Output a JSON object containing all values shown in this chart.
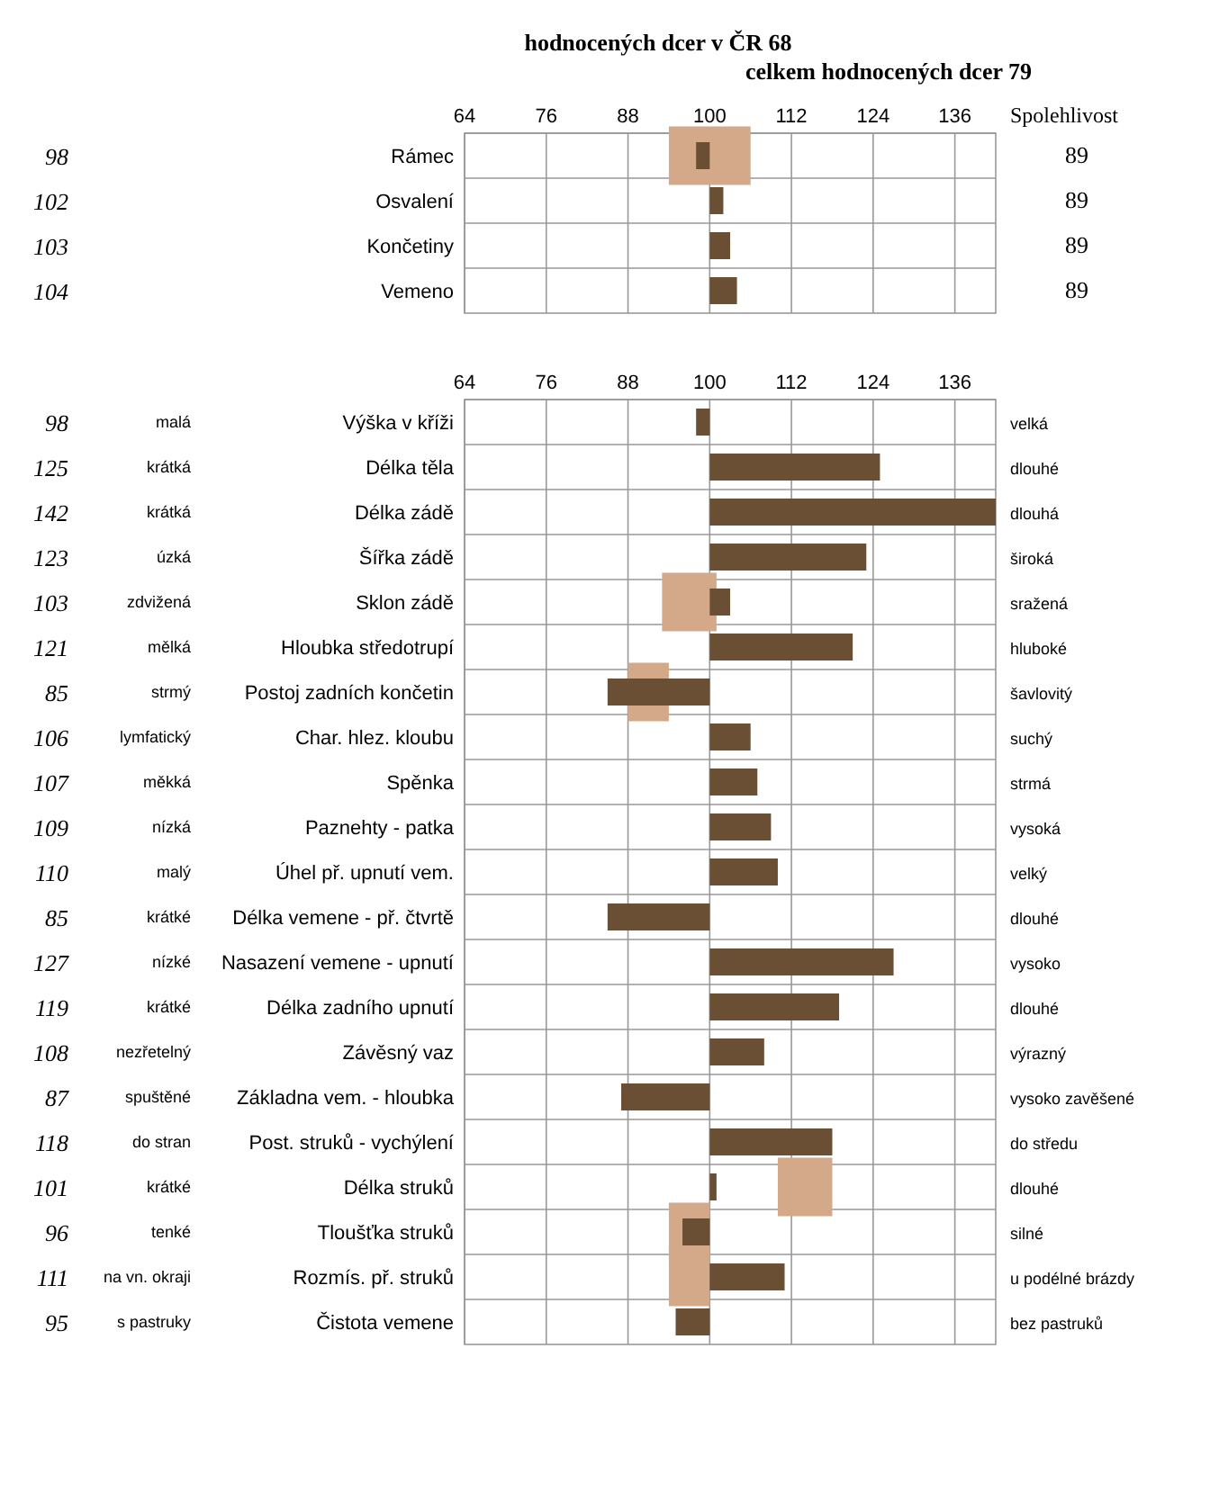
{
  "chart_data": [
    {
      "type": "bar",
      "orientation": "horizontal",
      "title": "hodnocených dcer v ČR 68",
      "subtitle": "celkem hodnocených dcer 79",
      "y2label": "Spolehlivost",
      "categories": [
        "Rámec",
        "Osvalení",
        "Končetiny",
        "Vemeno"
      ],
      "y2_categories": [
        "89",
        "89",
        "89",
        "89"
      ],
      "series": [
        {
          "type": "bar",
          "color": "#d4a98a",
          "base": [
            94,
            null,
            null,
            null
          ],
          "values": [
            12,
            null,
            null,
            null
          ]
        },
        {
          "type": "bar",
          "color": "#6b4f35",
          "base": [
            100,
            100,
            100,
            100
          ],
          "values": [
            -2,
            2,
            3,
            4
          ],
          "value_labels": [
            "98",
            "102",
            "103",
            "104"
          ]
        }
      ],
      "xlim": [
        64,
        142
      ],
      "xticks": [
        64,
        76,
        88,
        100,
        112,
        124,
        136
      ],
      "grid": true
    },
    {
      "type": "bar",
      "orientation": "horizontal",
      "categories": [
        "Výška v kříži",
        "Délka těla",
        "Délka zádě",
        "Šířka zádě",
        "Sklon zádě",
        "Hloubka středotrupí",
        "Postoj zadních končetin",
        "Char. hlez. kloubu",
        "Spěnka",
        "Paznehty - patka",
        "Úhel př. upnutí vem.",
        "Délka vemene - př. čtvrtě",
        "Nasazení vemene - upnutí",
        "Délka zadního upnutí",
        "Závěsný vaz",
        "Základna vem. - hloubka",
        "Post. struků - vychýlení",
        "Délka struků",
        "Tloušťka struků",
        "Rozmís. př. struků",
        "Čistota vemene"
      ],
      "annotations": [
        "malá",
        "krátká",
        "krátká",
        "úzká",
        "zdvižená",
        "mělká",
        "strmý",
        "lymfatický",
        "měkká",
        "nízká",
        "malý",
        "krátké",
        "nízké",
        "krátké",
        "nezřetelný",
        "spuštěné",
        "do stran",
        "krátké",
        "tenké",
        "na vn. okraji",
        "s pastruky"
      ],
      "y2_categories": [
        "velká",
        "dlouhé",
        "dlouhá",
        "široká",
        "sražená",
        "hluboké",
        "šavlovitý",
        "suchý",
        "strmá",
        "vysoká",
        "velký",
        "dlouhé",
        "vysoko",
        "dlouhé",
        "výrazný",
        "vysoko zavěšené",
        "do středu",
        "dlouhé",
        "silné",
        "u podélné brázdy",
        "bez pastruků"
      ],
      "series": [
        {
          "type": "bar",
          "color": "#d4a98a",
          "base": [
            null,
            null,
            null,
            null,
            93,
            null,
            88,
            null,
            null,
            null,
            null,
            null,
            null,
            null,
            null,
            null,
            null,
            110,
            94,
            94,
            null
          ],
          "values": [
            null,
            null,
            null,
            null,
            8,
            null,
            6,
            null,
            null,
            null,
            null,
            null,
            null,
            null,
            null,
            null,
            null,
            8,
            6,
            6,
            null
          ]
        },
        {
          "type": "bar",
          "color": "#6b4f35",
          "base": [
            100,
            100,
            100,
            100,
            100,
            100,
            100,
            100,
            100,
            100,
            100,
            100,
            100,
            100,
            100,
            100,
            100,
            100,
            100,
            100,
            100
          ],
          "values": [
            -2,
            25,
            42,
            23,
            3,
            21,
            -15,
            6,
            7,
            9,
            10,
            -15,
            27,
            19,
            8,
            -13,
            18,
            1,
            -4,
            11,
            -5
          ],
          "value_labels": [
            "98",
            "125",
            "142",
            "123",
            "103",
            "121",
            "85",
            "106",
            "107",
            "109",
            "110",
            "85",
            "127",
            "119",
            "108",
            "87",
            "118",
            "101",
            "96",
            "111",
            "95"
          ]
        }
      ],
      "xlim": [
        64,
        142
      ],
      "xticks": [
        64,
        76,
        88,
        100,
        112,
        124,
        136
      ],
      "grid": true
    }
  ]
}
